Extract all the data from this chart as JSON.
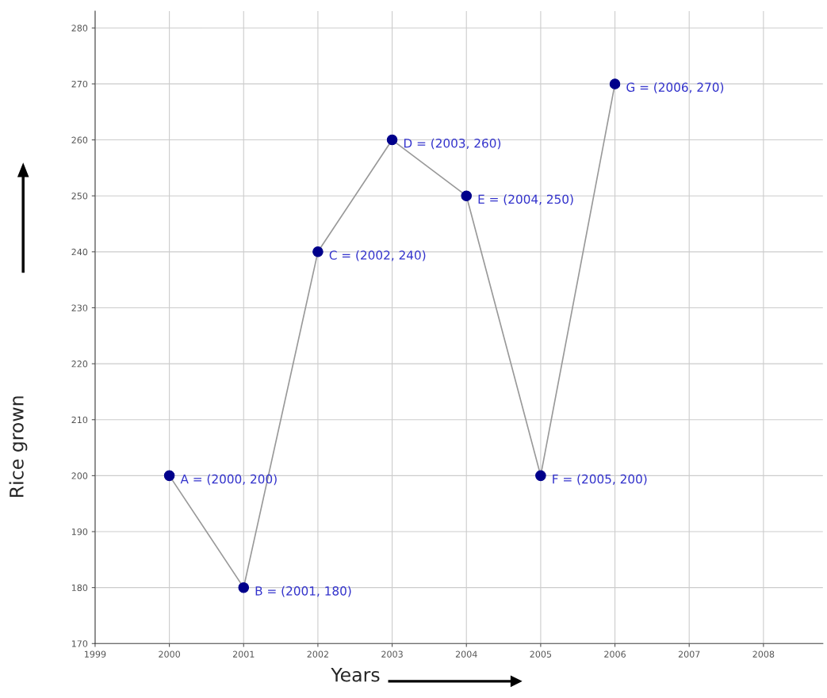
{
  "chart_data": {
    "type": "line",
    "xlabel": "Years",
    "ylabel": "Rice grown",
    "x": [
      2000,
      2001,
      2002,
      2003,
      2004,
      2005,
      2006
    ],
    "series": [
      {
        "color": "#00008b",
        "values": [
          200,
          180,
          240,
          260,
          250,
          200,
          270
        ]
      }
    ],
    "marker": "circle",
    "line_style": "solid",
    "grid": true,
    "xlim": [
      1999,
      2008.8
    ],
    "ylim": [
      170,
      283
    ],
    "xticks": [
      1999,
      2000,
      2001,
      2002,
      2003,
      2004,
      2005,
      2006,
      2007,
      2008
    ],
    "yticks": [
      170,
      180,
      190,
      200,
      210,
      220,
      230,
      240,
      250,
      260,
      270,
      280
    ],
    "annotations": [
      {
        "text": "A = (2000, 200)",
        "x": 2000,
        "y": 200
      },
      {
        "text": "B = (2001, 180)",
        "x": 2001,
        "y": 180
      },
      {
        "text": "C = (2002, 240)",
        "x": 2002,
        "y": 240
      },
      {
        "text": "D = (2003, 260)",
        "x": 2003,
        "y": 260
      },
      {
        "text": "E = (2004, 250)",
        "x": 2004,
        "y": 250
      },
      {
        "text": "F = (2005, 200)",
        "x": 2005,
        "y": 200
      },
      {
        "text": "G = (2006, 270)",
        "x": 2006,
        "y": 270
      }
    ]
  }
}
